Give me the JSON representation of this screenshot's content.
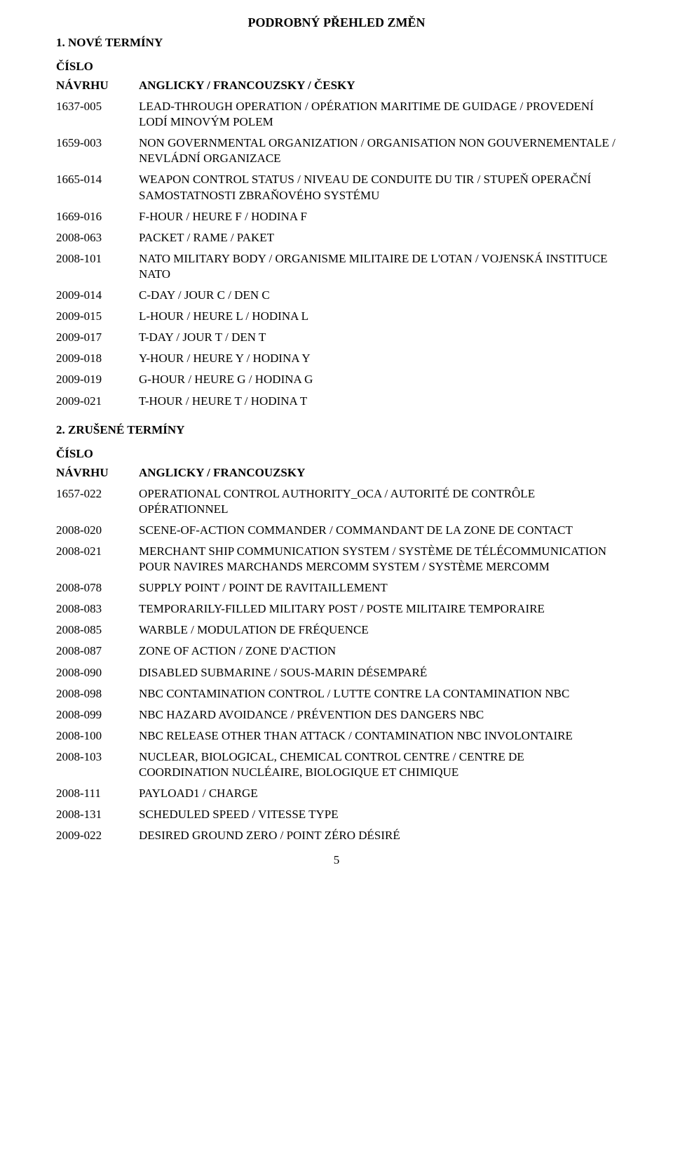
{
  "title": "PODROBNÝ PŘEHLED ZMĚN",
  "page_number": "5",
  "section1": {
    "heading": "1. NOVÉ TERMÍNY",
    "col_id_label_line1": "ČÍSLO",
    "col_id_label_line2": "NÁVRHU",
    "col_desc_label": "ANGLICKY / FRANCOUZSKY / ČESKY",
    "rows": [
      {
        "id": "1637-005",
        "desc": "LEAD-THROUGH OPERATION / OPÉRATION MARITIME DE GUIDAGE / PROVEDENÍ LODÍ MINOVÝM POLEM"
      },
      {
        "id": "1659-003",
        "desc": "NON GOVERNMENTAL ORGANIZATION / ORGANISATION NON GOUVERNEMENTALE / NEVLÁDNÍ ORGANIZACE"
      },
      {
        "id": "1665-014",
        "desc": "WEAPON CONTROL STATUS / NIVEAU DE CONDUITE DU TIR / STUPEŇ OPERAČNÍ SAMOSTATNOSTI ZBRAŇOVÉHO SYSTÉMU"
      },
      {
        "id": "1669-016",
        "desc": "F-HOUR / HEURE F / HODINA F"
      },
      {
        "id": "2008-063",
        "desc": "PACKET / RAME / PAKET"
      },
      {
        "id": "2008-101",
        "desc": "NATO MILITARY BODY / ORGANISME MILITAIRE DE L'OTAN / VOJENSKÁ INSTITUCE NATO"
      },
      {
        "id": "2009-014",
        "desc": "C-DAY / JOUR C / DEN C"
      },
      {
        "id": "2009-015",
        "desc": "L-HOUR / HEURE L / HODINA L"
      },
      {
        "id": "2009-017",
        "desc": "T-DAY / JOUR T / DEN T"
      },
      {
        "id": "2009-018",
        "desc": "Y-HOUR / HEURE Y / HODINA Y"
      },
      {
        "id": "2009-019",
        "desc": "G-HOUR / HEURE G / HODINA G"
      },
      {
        "id": "2009-021",
        "desc": "T-HOUR / HEURE T / HODINA T"
      }
    ]
  },
  "section2": {
    "heading": "2. ZRUŠENÉ TERMÍNY",
    "col_id_label_line1": "ČÍSLO",
    "col_id_label_line2": "NÁVRHU",
    "col_desc_label": "ANGLICKY / FRANCOUZSKY",
    "rows": [
      {
        "id": "1657-022",
        "desc": "OPERATIONAL CONTROL AUTHORITY_OCA / AUTORITÉ DE CONTRÔLE OPÉRATIONNEL"
      },
      {
        "id": "2008-020",
        "desc": "SCENE-OF-ACTION COMMANDER / COMMANDANT DE LA ZONE DE CONTACT"
      },
      {
        "id": "2008-021",
        "desc": "MERCHANT SHIP COMMUNICATION SYSTEM / SYSTÈME DE TÉLÉCOMMUNICATION POUR NAVIRES MARCHANDS MERCOMM SYSTEM / SYSTÈME MERCOMM"
      },
      {
        "id": "2008-078",
        "desc": "SUPPLY POINT / POINT DE RAVITAILLEMENT"
      },
      {
        "id": "2008-083",
        "desc": "TEMPORARILY-FILLED MILITARY POST / POSTE MILITAIRE TEMPORAIRE"
      },
      {
        "id": "2008-085",
        "desc": "WARBLE / MODULATION DE FRÉQUENCE"
      },
      {
        "id": "2008-087",
        "desc": "ZONE OF ACTION / ZONE D'ACTION"
      },
      {
        "id": "2008-090",
        "desc": "DISABLED SUBMARINE / SOUS-MARIN DÉSEMPARÉ"
      },
      {
        "id": "2008-098",
        "desc": "NBC CONTAMINATION CONTROL / LUTTE CONTRE LA CONTAMINATION NBC"
      },
      {
        "id": "2008-099",
        "desc": "NBC HAZARD AVOIDANCE / PRÉVENTION DES DANGERS NBC"
      },
      {
        "id": "2008-100",
        "desc": "NBC RELEASE OTHER THAN ATTACK / CONTAMINATION NBC INVOLONTAIRE"
      },
      {
        "id": "2008-103",
        "desc": "NUCLEAR, BIOLOGICAL, CHEMICAL CONTROL CENTRE / CENTRE DE COORDINATION NUCLÉAIRE, BIOLOGIQUE ET CHIMIQUE"
      },
      {
        "id": "2008-111",
        "desc": "PAYLOAD1 / CHARGE"
      },
      {
        "id": "2008-131",
        "desc": "SCHEDULED SPEED / VITESSE TYPE"
      },
      {
        "id": "2009-022",
        "desc": "DESIRED GROUND ZERO / POINT ZÉRO DÉSIRÉ"
      }
    ]
  }
}
